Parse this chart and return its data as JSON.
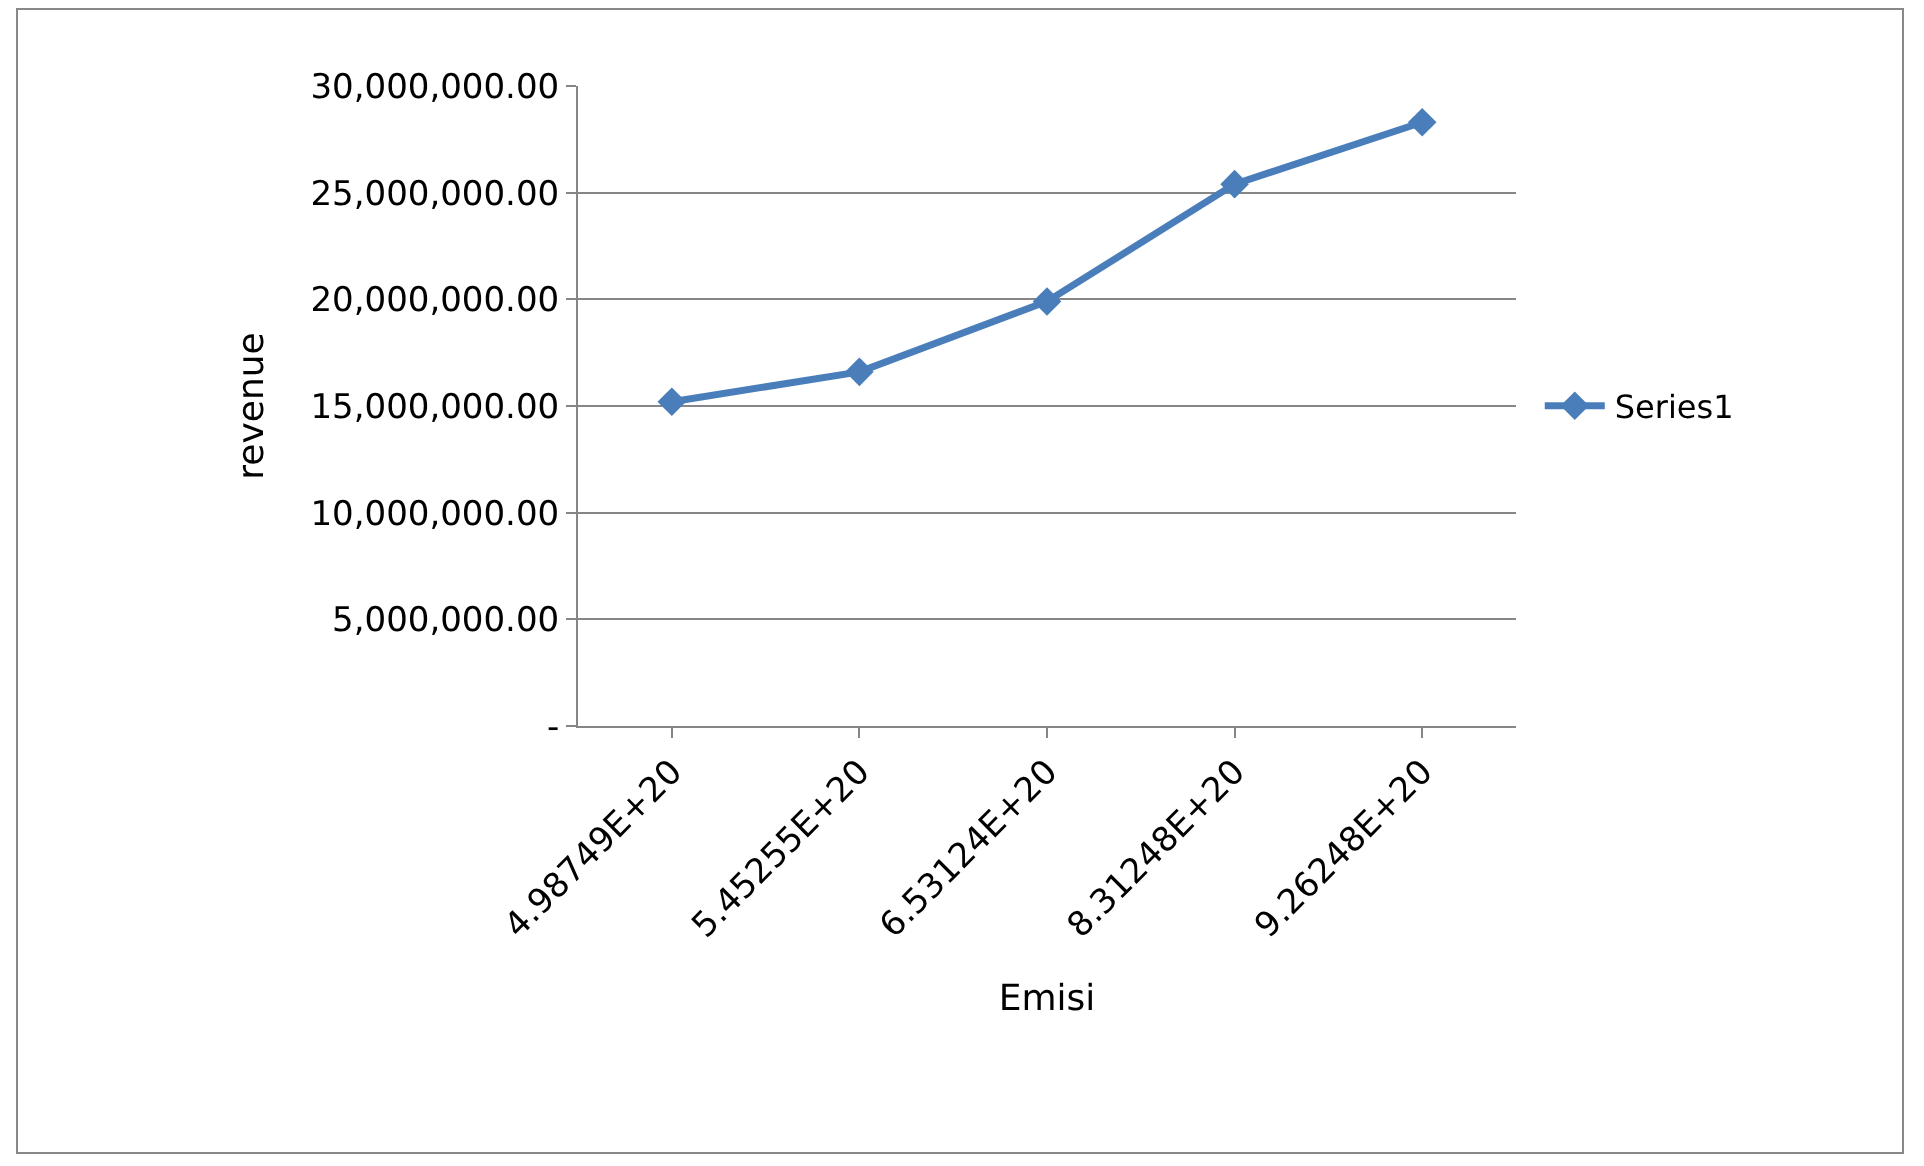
{
  "chart_data": {
    "type": "line",
    "xlabel": "Emisi",
    "ylabel": "revenue",
    "categories": [
      "4.98749E+20",
      "5.45255E+20",
      "6.53124E+20",
      "8.31248E+20",
      "9.26248E+20"
    ],
    "series": [
      {
        "name": "Series1",
        "color": "#4a7ebb",
        "values": [
          15200000,
          16600000,
          19900000,
          25400000,
          28300000
        ]
      }
    ],
    "ylim": [
      0,
      30000000
    ],
    "yticks": [
      {
        "value": 0,
        "label": "-"
      },
      {
        "value": 5000000,
        "label": "5,000,000.00"
      },
      {
        "value": 10000000,
        "label": "10,000,000.00"
      },
      {
        "value": 15000000,
        "label": "15,000,000.00"
      },
      {
        "value": 20000000,
        "label": "20,000,000.00"
      },
      {
        "value": 25000000,
        "label": "25,000,000.00"
      },
      {
        "value": 30000000,
        "label": "30,000,000.00"
      }
    ],
    "grid": "y",
    "legend": "right",
    "marker": "diamond",
    "line_style": "solid"
  }
}
